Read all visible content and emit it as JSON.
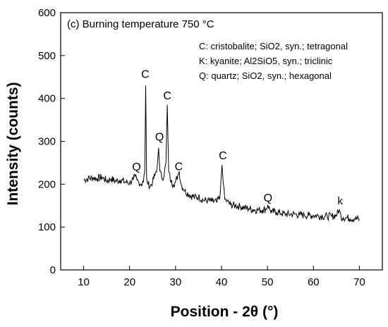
{
  "chart_data": {
    "type": "line",
    "panel_title": "(c) Burning temperature 750 °C",
    "xlabel": "Position - 2θ (°)",
    "ylabel": "Intensity (counts)",
    "xlim": [
      5,
      75
    ],
    "ylim": [
      0,
      600
    ],
    "x_ticks": [
      10,
      20,
      30,
      40,
      50,
      60,
      70
    ],
    "y_ticks": [
      0,
      100,
      200,
      300,
      400,
      500,
      600
    ],
    "grid": false,
    "legend": [
      "C: cristobalite; SiO2, syn.; tetragonal",
      "K: kyanite; Al2SiO5, syn.; triclinic",
      "Q: quartz; SiO2, syn.; hexagonal"
    ],
    "peak_labels": [
      {
        "label": "Q",
        "x": 21.5,
        "y": 222
      },
      {
        "label": "C",
        "x": 23.4,
        "y": 438
      },
      {
        "label": "Q",
        "x": 26.5,
        "y": 292
      },
      {
        "label": "C",
        "x": 28.2,
        "y": 388
      },
      {
        "label": "C",
        "x": 30.7,
        "y": 223
      },
      {
        "label": "C",
        "x": 40.3,
        "y": 248
      },
      {
        "label": "Q",
        "x": 50.1,
        "y": 150
      },
      {
        "label": "k",
        "x": 65.8,
        "y": 143
      }
    ],
    "series": [
      {
        "x": [
          10,
          11,
          12,
          13,
          14,
          15,
          16,
          17,
          18,
          19,
          20,
          20.8,
          21.2,
          21.6,
          22.0,
          22.5,
          23.0,
          23.3,
          23.5,
          23.7,
          24.0,
          24.5,
          25.0,
          25.5,
          26.0,
          26.3,
          26.6,
          27.0,
          27.5,
          27.9,
          28.2,
          28.5,
          29.0,
          29.5,
          30.0,
          30.5,
          30.8,
          31.2,
          32,
          33,
          34,
          35,
          36,
          37,
          38,
          39,
          39.7,
          40.1,
          40.4,
          40.7,
          41.2,
          42,
          43,
          44,
          45,
          46,
          47,
          48,
          49,
          49.7,
          50.1,
          50.5,
          51,
          52,
          53,
          54,
          55,
          56,
          57,
          58,
          59,
          60,
          61,
          62,
          63,
          64,
          65,
          65.6,
          66.0,
          66.5,
          67,
          68,
          69,
          70
        ],
        "values": [
          210,
          213,
          215,
          213,
          216,
          208,
          212,
          207,
          210,
          205,
          203,
          210,
          218,
          210,
          205,
          200,
          205,
          230,
          430,
          215,
          200,
          195,
          205,
          220,
          240,
          285,
          230,
          215,
          220,
          250,
          385,
          230,
          205,
          200,
          205,
          220,
          230,
          200,
          185,
          175,
          170,
          170,
          163,
          162,
          160,
          158,
          175,
          245,
          200,
          165,
          160,
          152,
          150,
          148,
          145,
          143,
          140,
          140,
          140,
          142,
          152,
          140,
          135,
          135,
          132,
          130,
          130,
          130,
          128,
          128,
          127,
          127,
          127,
          125,
          125,
          125,
          128,
          140,
          125,
          122,
          122,
          120,
          120,
          118
        ]
      }
    ]
  }
}
